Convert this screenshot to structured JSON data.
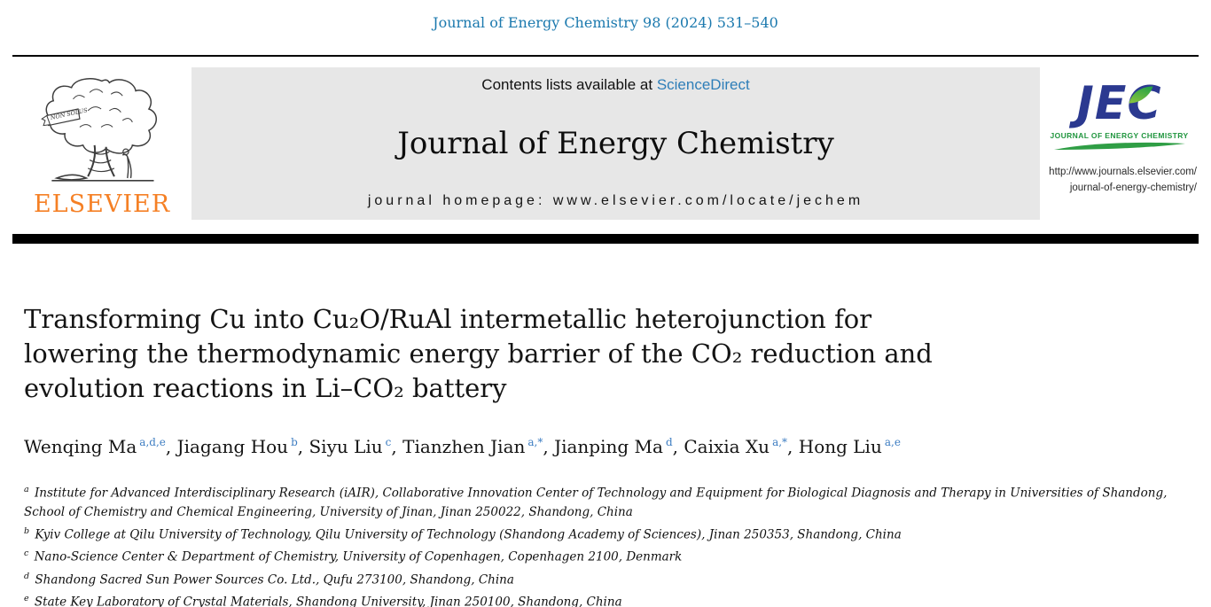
{
  "page": {
    "citation": "Journal of Energy Chemistry 98 (2024) 531–540"
  },
  "masthead": {
    "contents_line_prefix": "Contents lists available at",
    "sciencedirect_link": "ScienceDirect",
    "journal_name": "Journal of Energy Chemistry",
    "homepage_line": "journal homepage: www.elsevier.com/locate/jechem"
  },
  "elsevier_logo": {
    "wordmark": "ELSEVIER",
    "ribbon_text": "NON SOLUS"
  },
  "jec_logo": {
    "wordmark": "JEC",
    "tagline": "JOURNAL OF ENERGY CHEMISTRY",
    "url_line1": "http://www.journals.elsevier.com/",
    "url_line2": "journal-of-energy-chemistry/"
  },
  "article": {
    "title_lines": [
      "Transforming Cu into Cu₂O/RuAl intermetallic heterojunction for",
      "lowering the thermodynamic energy barrier of the CO₂ reduction and",
      "evolution reactions in Li–CO₂ battery"
    ],
    "authors": [
      {
        "name": "Wenqing Ma",
        "sup": "a,d,e"
      },
      {
        "name": "Jiagang Hou",
        "sup": "b"
      },
      {
        "name": "Siyu Liu",
        "sup": "c"
      },
      {
        "name": "Tianzhen Jian",
        "sup": "a,*"
      },
      {
        "name": "Jianping Ma",
        "sup": "d"
      },
      {
        "name": "Caixia Xu",
        "sup": "a,*"
      },
      {
        "name": "Hong Liu",
        "sup": "a,e"
      }
    ],
    "author_separator": ", ",
    "affiliations": [
      {
        "sup": "a",
        "text": "Institute for Advanced Interdisciplinary Research (iAIR), Collaborative Innovation Center of Technology and Equipment for Biological Diagnosis and Therapy in Universities of Shandong, School of Chemistry and Chemical Engineering, University of Jinan, Jinan 250022, Shandong, China"
      },
      {
        "sup": "b",
        "text": "Kyiv College at Qilu University of Technology, Qilu University of Technology (Shandong Academy of Sciences), Jinan 250353, Shandong, China"
      },
      {
        "sup": "c",
        "text": "Nano-Science Center & Department of Chemistry, University of Copenhagen, Copenhagen 2100, Denmark"
      },
      {
        "sup": "d",
        "text": "Shandong Sacred Sun Power Sources Co. Ltd., Qufu 273100, Shandong, China"
      },
      {
        "sup": "e",
        "text": "State Key Laboratory of Crystal Materials, Shandong University, Jinan 250100, Shandong, China"
      }
    ]
  },
  "colors": {
    "citation_blue": "#1b79ae",
    "sciencedirect_blue": "#2e7eb8",
    "superscript_blue": "#3d7dc2",
    "elsevier_orange": "#f58025",
    "jec_navy": "#2b3990",
    "jec_green": "#2f9e45",
    "banner_gray": "#e7e7e7",
    "separator_black": "#000000"
  }
}
